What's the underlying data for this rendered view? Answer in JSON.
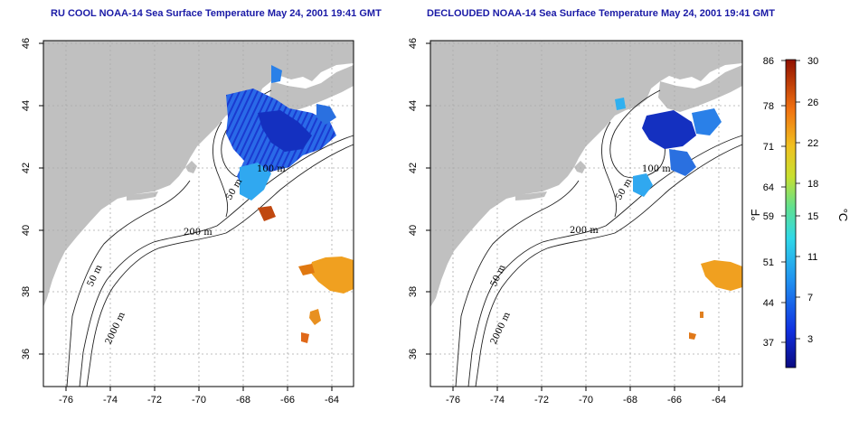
{
  "panels": [
    {
      "title": "RU COOL NOAA-14 Sea Surface Temperature May 24, 2001 19:41 GMT",
      "contour_labels": [
        "100 m",
        "50 m",
        "200 m",
        "50 m",
        "2000 m"
      ]
    },
    {
      "title": "DECLOUDED NOAA-14 Sea Surface Temperature May 24, 2001 19:41 GMT",
      "contour_labels": [
        "100 m",
        "50 m",
        "200 m",
        "50 m",
        "2000 m"
      ]
    }
  ],
  "axes": {
    "lon_ticks": [
      "-76",
      "-74",
      "-72",
      "-70",
      "-68",
      "-66",
      "-64"
    ],
    "lat_ticks": [
      "46",
      "44",
      "42",
      "40",
      "38",
      "36"
    ]
  },
  "colorbar": {
    "fahrenheit_ticks": [
      "86",
      "78",
      "71",
      "64",
      "59",
      "51",
      "44",
      "37"
    ],
    "celsius_ticks": [
      "30",
      "26",
      "22",
      "18",
      "15",
      "11",
      "7",
      "3"
    ],
    "unit_f": "°F",
    "unit_c": "°C"
  },
  "colors": {
    "land": "#c0c0c0",
    "ocean": "#ffffff",
    "grid": "#aaaaaa",
    "title": "#1a1aa6",
    "cold": "#0a1aa0",
    "warm": "#e8a020"
  }
}
